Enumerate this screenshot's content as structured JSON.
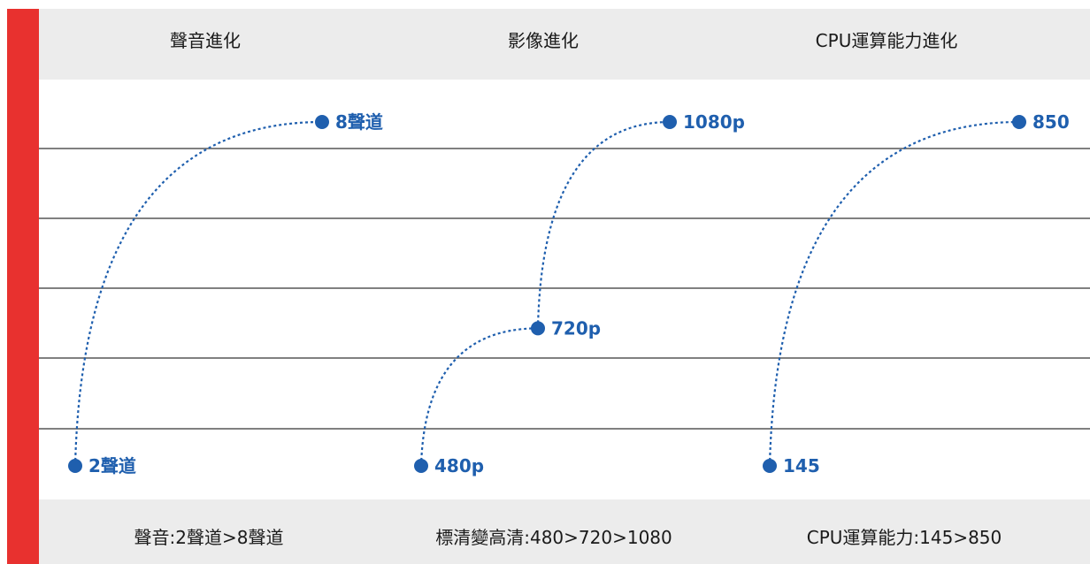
{
  "headers": [
    "聲音進化",
    "影像進化",
    "CPU運算能力進化"
  ],
  "footers": [
    "聲音:2聲道>8聲道",
    "標清變高清:480>720>1080",
    "CPU運算能力:145>850"
  ],
  "colors": {
    "accent_bar": "#e8312f",
    "point": "#1f5fae",
    "band": "#ececec",
    "gridline": "#808080"
  },
  "chart_data": [
    {
      "type": "line",
      "title": "聲音進化",
      "points": [
        {
          "label": "2聲道",
          "value": 2
        },
        {
          "label": "8聲道",
          "value": 8
        }
      ]
    },
    {
      "type": "line",
      "title": "影像進化",
      "points": [
        {
          "label": "480p",
          "value": 480
        },
        {
          "label": "720p",
          "value": 720
        },
        {
          "label": "1080p",
          "value": 1080
        }
      ]
    },
    {
      "type": "line",
      "title": "CPU運算能力進化",
      "points": [
        {
          "label": "145",
          "value": 145
        },
        {
          "label": "850",
          "value": 850
        }
      ]
    }
  ]
}
